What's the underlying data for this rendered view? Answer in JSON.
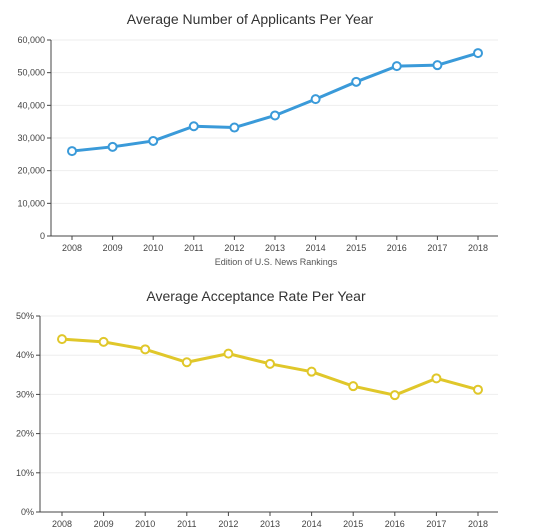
{
  "chart_data": [
    {
      "type": "line",
      "title": "Average Number of Applicants Per Year",
      "xlabel": "Edition of U.S. News Rankings",
      "ylabel": "",
      "categories": [
        "2008",
        "2009",
        "2010",
        "2011",
        "2012",
        "2013",
        "2014",
        "2015",
        "2016",
        "2017",
        "2018"
      ],
      "series": [
        {
          "values": [
            26000,
            27300,
            29100,
            33600,
            33200,
            36900,
            41900,
            47200,
            52000,
            52300,
            56000
          ]
        }
      ],
      "ylim": [
        0,
        60000
      ],
      "yticks": [
        0,
        10000,
        20000,
        30000,
        40000,
        50000,
        60000
      ],
      "ytick_labels": [
        "0",
        "10,000",
        "20,000",
        "30,000",
        "40,000",
        "50,000",
        "60,000"
      ],
      "grid": true,
      "color": "#3a9ad9"
    },
    {
      "type": "line",
      "title": "Average Acceptance Rate Per Year",
      "xlabel": "",
      "ylabel": "",
      "categories": [
        "2008",
        "2009",
        "2010",
        "2011",
        "2012",
        "2013",
        "2014",
        "2015",
        "2016",
        "2017",
        "2018"
      ],
      "series": [
        {
          "values": [
            44.1,
            43.4,
            41.5,
            38.2,
            40.4,
            37.8,
            35.8,
            32.1,
            29.8,
            34.1,
            31.2
          ]
        }
      ],
      "ylim": [
        0,
        50
      ],
      "yticks": [
        0,
        10,
        20,
        30,
        40,
        50
      ],
      "ytick_labels": [
        "0%",
        "10%",
        "20%",
        "30%",
        "40%",
        "50%"
      ],
      "grid": true,
      "color": "#e0c72a"
    }
  ]
}
